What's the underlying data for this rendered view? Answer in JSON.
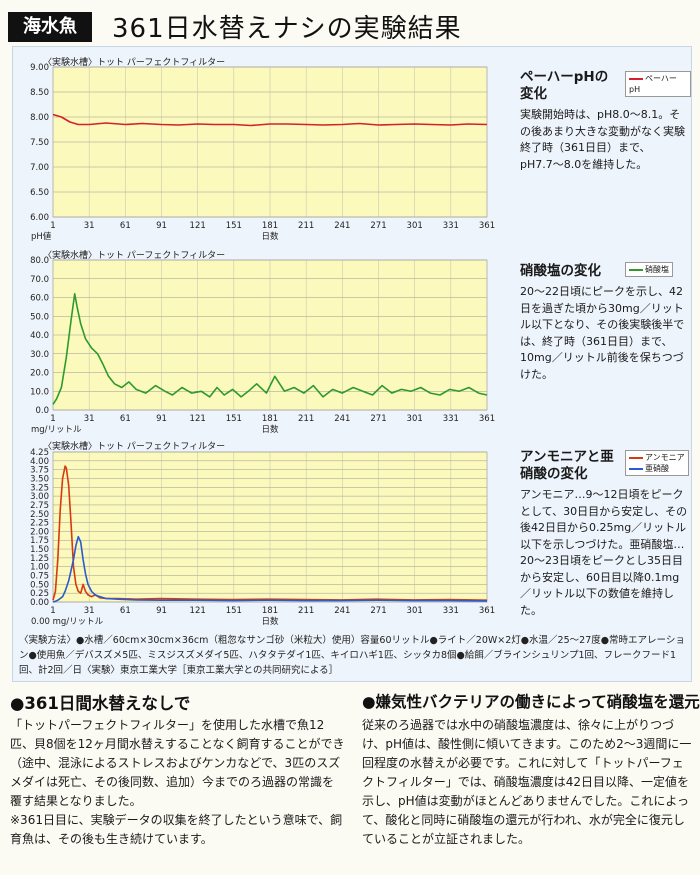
{
  "header": {
    "tag": "海水魚",
    "title": "361日水替えナシの実験結果"
  },
  "charts": [
    {
      "caption": "〈実験水槽〉トット パーフェクトフィルター",
      "heading": "ペーハーpHの変化",
      "legend": [
        "ペーハーpH"
      ],
      "desc": "実験開始時は、pH8.0〜8.1。その後あまり大きな変動がなく実験終了時（361日目）まで、pH7.7〜8.0を維持した。",
      "yunit": "pH値",
      "xlabel": "日数"
    },
    {
      "caption": "〈実験水槽〉トット パーフェクトフィルター",
      "heading": "硝酸塩の変化",
      "legend": [
        "硝酸塩"
      ],
      "desc": "20〜22日頃にピークを示し、42日を過ぎた頃から30mg／リットル以下となり、その後実験後半では、終了時（361日目）まで、10mg／リットル前後を保ちつづけた。",
      "yunit": "mg/リットル",
      "xlabel": "日数"
    },
    {
      "caption": "〈実験水槽〉トット パーフェクトフィルター",
      "heading": "アンモニアと亜硝酸の変化",
      "legend": [
        "アンモニア",
        "亜硝酸"
      ],
      "desc": "アンモニア…9〜12日頃をピークとして、30日目から安定し、その後42日目から0.25mg／リットル以下を示しつづけた。亜硝酸塩…20〜23日頃をピークとし35日目から安定し、60日目以降0.1mg／リットル以下の数値を維持した。",
      "yunit": "0.00 mg/リットル",
      "xlabel": "日数"
    }
  ],
  "method": "〈実験方法〉●水槽／60cm×30cm×36cm（粗忽なサンゴ砂（米粒大）使用）容量60リットル●ライト／20W×2灯●水温／25〜27度●常時エアレーション●使用魚／デバスズメ5匹、ミスジスズメダイ5匹、ハタタテダイ1匹、キイロハギ1匹、シッタカ8個●給餌／ブラインシュリンプ1回、フレークフード1回、計2回／日〈実験〉東京工業大学［東京工業大学との共同研究による］",
  "sections": [
    {
      "title": "●361日間水替えなしで",
      "body": "「トットパーフェクトフィルター」を使用した水槽で魚12匹、貝8個を12ヶ月間水替えすることなく飼育することができ（途中、混泳によるストレスおよびケンカなどで、3匹のスズメダイは死亡、その後同数、追加）今までのろ過器の常識を覆す結果となりました。",
      "note": "※361日目に、実験データの収集を終了したという意味で、飼育魚は、その後も生き続けています。"
    },
    {
      "title": "●嫌気性バクテリアの働きによって硝酸塩を還元",
      "body": "従来のろ過器では水中の硝酸塩濃度は、徐々に上がりつづけ、pH値は、酸性側に傾いてきます。このため2〜3週間に一回程度の水替えが必要です。これに対して「トットパーフェクトフィルター」では、硝酸塩濃度は42日目以降、一定値を示し、pH値は変動がほとんどありませんでした。これによって、酸化と同時に硝酸塩の還元が行われ、水が完全に復元していることが立証されました。"
    }
  ],
  "chart_data": [
    {
      "type": "line",
      "x": [
        1,
        8,
        15,
        22,
        31,
        45,
        61,
        75,
        91,
        105,
        121,
        135,
        151,
        165,
        181,
        195,
        211,
        225,
        241,
        255,
        271,
        285,
        301,
        315,
        331,
        345,
        361
      ],
      "series": [
        {
          "name": "ペーハーpH",
          "values": [
            8.05,
            8.0,
            7.9,
            7.85,
            7.85,
            7.88,
            7.85,
            7.87,
            7.85,
            7.84,
            7.86,
            7.85,
            7.85,
            7.83,
            7.86,
            7.86,
            7.85,
            7.84,
            7.85,
            7.87,
            7.84,
            7.85,
            7.86,
            7.85,
            7.84,
            7.86,
            7.85
          ]
        }
      ],
      "xticks": [
        1,
        31,
        61,
        91,
        121,
        151,
        181,
        211,
        241,
        271,
        301,
        331,
        361
      ],
      "yticks": [
        6.0,
        6.5,
        7.0,
        7.5,
        8.0,
        8.5,
        9.0
      ],
      "yticklabels": [
        "6.00",
        "6.50",
        "7.00",
        "7.50",
        "8.00",
        "8.50",
        "9.00"
      ],
      "xlim": [
        1,
        361
      ],
      "ylim": [
        6.0,
        9.0
      ],
      "colors": [
        "#d4202f"
      ],
      "grid": true,
      "legend": "top-right"
    },
    {
      "type": "line",
      "x": [
        1,
        4,
        8,
        12,
        16,
        19,
        21,
        24,
        28,
        33,
        38,
        42,
        47,
        52,
        58,
        64,
        70,
        78,
        86,
        94,
        100,
        108,
        116,
        124,
        131,
        137,
        143,
        150,
        157,
        163,
        170,
        178,
        185,
        193,
        201,
        209,
        217,
        225,
        233,
        241,
        250,
        258,
        266,
        274,
        282,
        290,
        298,
        306,
        314,
        322,
        330,
        338,
        346,
        354,
        361
      ],
      "series": [
        {
          "name": "硝酸塩",
          "values": [
            3,
            6,
            12,
            28,
            48,
            62,
            55,
            46,
            38,
            33,
            30,
            25,
            18,
            14,
            12,
            15,
            11,
            9,
            13,
            10,
            8,
            12,
            9,
            10,
            7,
            12,
            8,
            11,
            7,
            10,
            14,
            9,
            18,
            10,
            12,
            9,
            13,
            7,
            11,
            9,
            12,
            10,
            8,
            13,
            9,
            11,
            10,
            12,
            9,
            8,
            11,
            10,
            12,
            9,
            8
          ]
        }
      ],
      "xticks": [
        1,
        31,
        61,
        91,
        121,
        151,
        181,
        211,
        241,
        271,
        301,
        331,
        361
      ],
      "yticks": [
        0,
        10,
        20,
        30,
        40,
        50,
        60,
        70,
        80
      ],
      "yticklabels": [
        "0.0",
        "10.0",
        "20.0",
        "30.0",
        "40.0",
        "50.0",
        "60.0",
        "70.0",
        "80.0"
      ],
      "xlim": [
        1,
        361
      ],
      "ylim": [
        0,
        80
      ],
      "colors": [
        "#2e9a2e"
      ],
      "grid": true,
      "legend": "top-right"
    },
    {
      "type": "line",
      "x": [
        1,
        3,
        5,
        7,
        9,
        11,
        12,
        14,
        16,
        18,
        20,
        22,
        24,
        26,
        28,
        30,
        33,
        36,
        40,
        45,
        55,
        70,
        90,
        120,
        150,
        180,
        210,
        240,
        270,
        300,
        330,
        361
      ],
      "series": [
        {
          "name": "アンモニア",
          "values": [
            0.05,
            0.3,
            1.2,
            2.6,
            3.5,
            3.85,
            3.8,
            3.3,
            2.2,
            1.0,
            0.5,
            0.3,
            0.25,
            0.5,
            0.3,
            0.2,
            0.15,
            0.2,
            0.12,
            0.1,
            0.1,
            0.08,
            0.1,
            0.08,
            0.07,
            0.08,
            0.07,
            0.06,
            0.08,
            0.06,
            0.07,
            0.05
          ]
        },
        {
          "name": "亜硝酸",
          "values": [
            0.0,
            0.02,
            0.05,
            0.1,
            0.15,
            0.3,
            0.4,
            0.6,
            0.9,
            1.2,
            1.6,
            1.85,
            1.7,
            1.2,
            0.8,
            0.5,
            0.3,
            0.2,
            0.15,
            0.1,
            0.08,
            0.06,
            0.05,
            0.05,
            0.04,
            0.05,
            0.04,
            0.04,
            0.05,
            0.04,
            0.04,
            0.03
          ]
        }
      ],
      "xticks": [
        1,
        31,
        61,
        91,
        121,
        151,
        181,
        211,
        241,
        271,
        301,
        331,
        361
      ],
      "yticks": [
        0,
        0.25,
        0.5,
        0.75,
        1.0,
        1.25,
        1.5,
        1.75,
        2.0,
        2.25,
        2.5,
        2.75,
        3.0,
        3.25,
        3.5,
        3.75,
        4.0,
        4.25
      ],
      "yticklabels": [
        "0.00",
        "0.25",
        "0.50",
        "0.75",
        "1.00",
        "1.25",
        "1.50",
        "1.75",
        "2.00",
        "2.25",
        "2.50",
        "2.75",
        "3.00",
        "3.25",
        "3.50",
        "3.75",
        "4.00",
        "4.25"
      ],
      "xlim": [
        1,
        361
      ],
      "ylim": [
        0,
        4.25
      ],
      "colors": [
        "#d63a10",
        "#2b5bd0"
      ],
      "grid": true,
      "legend": "top-right"
    }
  ]
}
